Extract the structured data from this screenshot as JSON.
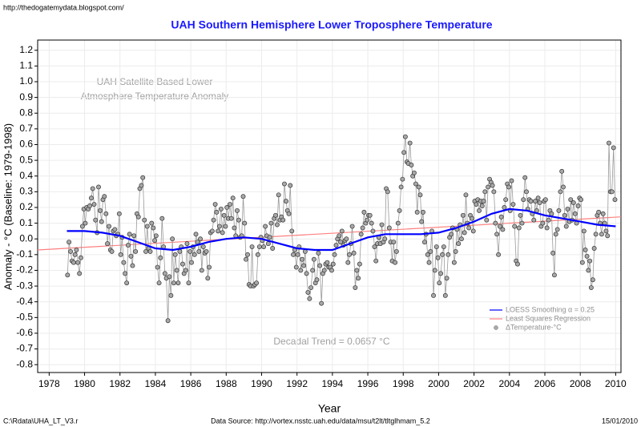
{
  "chart_data": {
    "type": "scatter",
    "source_url": "http://thedogatemydata.blogspot.com/",
    "title": "UAH Southern Hemisphere Lower Troposphere Temperature",
    "annotations": [
      "UAH Satellite Based Lower",
      "Atmosphere Temperature Anomaly",
      "Decadal Trend =  0.0657 °C"
    ],
    "xlabel": "Year",
    "ylabel": "Anomaly - °C (Baseline: 1979-1998)",
    "footer": [
      "C:\\Rdata\\UHA_LT_V3.r",
      "Data Source: http://vortex.nsstc.uah.edu/data/msu/t2lt/tltglhmam_5.2",
      "15/01/2010"
    ],
    "xlim": [
      1977.35,
      2010.3
    ],
    "ylim": [
      -0.85,
      1.265
    ],
    "xticks": [
      1978,
      1980,
      1982,
      1984,
      1986,
      1988,
      1990,
      1992,
      1994,
      1996,
      1998,
      2000,
      2002,
      2004,
      2006,
      2008,
      2010
    ],
    "yticks": [
      -0.8,
      -0.7,
      -0.6,
      -0.5,
      -0.4,
      -0.3,
      -0.2,
      -0.1,
      {
        "value": 0,
        "label": "0.0"
      },
      0.1,
      0.2,
      0.3,
      0.4,
      0.5,
      0.6,
      0.7,
      0.8,
      0.9,
      {
        "value": 1,
        "label": "1.0"
      },
      1.1,
      1.2
    ],
    "grid": true,
    "legend": "lower right",
    "series": [
      {
        "name": "LOESS Smoothing α = 0.25",
        "kind": "line",
        "color": "#0000ff",
        "x": [
          1979,
          1980,
          1981,
          1982,
          1983,
          1984,
          1985,
          1986,
          1987,
          1988,
          1989,
          1990,
          1991,
          1992,
          1993,
          1994,
          1995,
          1996,
          1997,
          1998,
          1999,
          2000,
          2001,
          2002,
          2003,
          2004,
          2005,
          2006,
          2007,
          2008,
          2009,
          2010
        ],
        "values": [
          0.05,
          0.05,
          0.04,
          0.02,
          -0.02,
          -0.06,
          -0.07,
          -0.05,
          -0.02,
          0.0,
          0.01,
          0.0,
          -0.03,
          -0.06,
          -0.07,
          -0.07,
          -0.03,
          0.01,
          0.03,
          0.03,
          0.03,
          0.04,
          0.07,
          0.11,
          0.16,
          0.19,
          0.18,
          0.15,
          0.13,
          0.11,
          0.09,
          0.08
        ]
      },
      {
        "name": "Least Squares Regression",
        "kind": "line",
        "color": "#ff7f7f",
        "x": [
          1977.35,
          2010.3
        ],
        "values": [
          -0.07,
          0.14
        ]
      },
      {
        "name": "ΔTemperature-°C",
        "kind": "points",
        "color": "#a8a8a8",
        "x": [
          1979.04,
          1979.12,
          1979.21,
          1979.29,
          1979.38,
          1979.46,
          1979.54,
          1979.62,
          1979.71,
          1979.79,
          1979.88,
          1979.96,
          1980.04,
          1980.12,
          1980.21,
          1980.29,
          1980.38,
          1980.46,
          1980.54,
          1980.62,
          1980.71,
          1980.79,
          1980.88,
          1980.96,
          1981.04,
          1981.12,
          1981.21,
          1981.29,
          1981.38,
          1981.46,
          1981.54,
          1981.62,
          1981.71,
          1981.79,
          1981.88,
          1981.96,
          1982.04,
          1982.12,
          1982.21,
          1982.29,
          1982.38,
          1982.46,
          1982.54,
          1982.62,
          1982.71,
          1982.79,
          1982.88,
          1982.96,
          1983.04,
          1983.12,
          1983.21,
          1983.29,
          1983.38,
          1983.46,
          1983.54,
          1983.62,
          1983.71,
          1983.79,
          1983.88,
          1983.96,
          1984.04,
          1984.12,
          1984.21,
          1984.29,
          1984.38,
          1984.46,
          1984.54,
          1984.62,
          1984.71,
          1984.79,
          1984.88,
          1984.96,
          1985.04,
          1985.12,
          1985.21,
          1985.29,
          1985.38,
          1985.46,
          1985.54,
          1985.62,
          1985.71,
          1985.79,
          1985.88,
          1985.96,
          1986.04,
          1986.12,
          1986.21,
          1986.29,
          1986.38,
          1986.46,
          1986.54,
          1986.62,
          1986.71,
          1986.79,
          1986.88,
          1986.96,
          1987.04,
          1987.12,
          1987.21,
          1987.29,
          1987.38,
          1987.46,
          1987.54,
          1987.62,
          1987.71,
          1987.79,
          1987.88,
          1987.96,
          1988.04,
          1988.12,
          1988.21,
          1988.29,
          1988.38,
          1988.46,
          1988.54,
          1988.62,
          1988.71,
          1988.79,
          1988.88,
          1988.96,
          1989.04,
          1989.12,
          1989.21,
          1989.29,
          1989.38,
          1989.46,
          1989.54,
          1989.62,
          1989.71,
          1989.79,
          1989.88,
          1989.96,
          1990.04,
          1990.12,
          1990.21,
          1990.29,
          1990.38,
          1990.46,
          1990.54,
          1990.62,
          1990.71,
          1990.79,
          1990.88,
          1990.96,
          1991.04,
          1991.12,
          1991.21,
          1991.29,
          1991.38,
          1991.46,
          1991.54,
          1991.62,
          1991.71,
          1991.79,
          1991.88,
          1991.96,
          1992.04,
          1992.12,
          1992.21,
          1992.29,
          1992.38,
          1992.46,
          1992.54,
          1992.62,
          1992.71,
          1992.79,
          1992.88,
          1992.96,
          1993.04,
          1993.12,
          1993.21,
          1993.29,
          1993.38,
          1993.46,
          1993.54,
          1993.62,
          1993.71,
          1993.79,
          1993.88,
          1993.96,
          1994.04,
          1994.12,
          1994.21,
          1994.29,
          1994.38,
          1994.46,
          1994.54,
          1994.62,
          1994.71,
          1994.79,
          1994.88,
          1994.96,
          1995.04,
          1995.12,
          1995.21,
          1995.29,
          1995.38,
          1995.46,
          1995.54,
          1995.62,
          1995.71,
          1995.79,
          1995.88,
          1995.96,
          1996.04,
          1996.12,
          1996.21,
          1996.29,
          1996.38,
          1996.46,
          1996.54,
          1996.62,
          1996.71,
          1996.79,
          1996.88,
          1996.96,
          1997.04,
          1997.12,
          1997.21,
          1997.29,
          1997.38,
          1997.46,
          1997.54,
          1997.62,
          1997.71,
          1997.79,
          1997.88,
          1997.96,
          1998.04,
          1998.12,
          1998.21,
          1998.29,
          1998.38,
          1998.46,
          1998.54,
          1998.62,
          1998.71,
          1998.79,
          1998.88,
          1998.96,
          1999.04,
          1999.12,
          1999.21,
          1999.29,
          1999.38,
          1999.46,
          1999.54,
          1999.62,
          1999.71,
          1999.79,
          1999.88,
          1999.96,
          2000.04,
          2000.12,
          2000.21,
          2000.29,
          2000.38,
          2000.46,
          2000.54,
          2000.62,
          2000.71,
          2000.79,
          2000.88,
          2000.96,
          2001.04,
          2001.12,
          2001.21,
          2001.29,
          2001.38,
          2001.46,
          2001.54,
          2001.62,
          2001.71,
          2001.79,
          2001.88,
          2001.96,
          2002.04,
          2002.12,
          2002.21,
          2002.29,
          2002.38,
          2002.46,
          2002.54,
          2002.62,
          2002.71,
          2002.79,
          2002.88,
          2002.96,
          2003.04,
          2003.12,
          2003.21,
          2003.29,
          2003.38,
          2003.46,
          2003.54,
          2003.62,
          2003.71,
          2003.79,
          2003.88,
          2003.96,
          2004.04,
          2004.12,
          2004.21,
          2004.29,
          2004.38,
          2004.46,
          2004.54,
          2004.62,
          2004.71,
          2004.79,
          2004.88,
          2004.96,
          2005.04,
          2005.12,
          2005.21,
          2005.29,
          2005.38,
          2005.46,
          2005.54,
          2005.62,
          2005.71,
          2005.79,
          2005.88,
          2005.96,
          2006.04,
          2006.12,
          2006.21,
          2006.29,
          2006.38,
          2006.46,
          2006.54,
          2006.62,
          2006.71,
          2006.79,
          2006.88,
          2006.96,
          2007.04,
          2007.12,
          2007.21,
          2007.29,
          2007.38,
          2007.46,
          2007.54,
          2007.62,
          2007.71,
          2007.79,
          2007.88,
          2007.96,
          2008.04,
          2008.12,
          2008.21,
          2008.29,
          2008.38,
          2008.46,
          2008.54,
          2008.62,
          2008.71,
          2008.79,
          2008.88,
          2008.96,
          2009.04,
          2009.12,
          2009.21,
          2009.29,
          2009.38,
          2009.46,
          2009.54,
          2009.62,
          2009.71,
          2009.79,
          2009.88,
          2009.96
        ],
        "values": [
          -0.23,
          -0.02,
          -0.08,
          -0.14,
          -0.15,
          -0.1,
          -0.07,
          -0.15,
          -0.22,
          -0.12,
          0.08,
          0.19,
          0.1,
          0.2,
          0.19,
          0.21,
          0.26,
          0.32,
          0.22,
          0.12,
          0.04,
          0.33,
          0.18,
          0.11,
          0.25,
          0.27,
          0.16,
          -0.03,
          0.08,
          -0.07,
          -0.08,
          0.05,
          0.06,
          0.02,
          0.03,
          0.16,
          -0.1,
          0.01,
          -0.15,
          -0.22,
          -0.28,
          -0.04,
          0.03,
          -0.11,
          -0.17,
          0.02,
          -0.08,
          0.16,
          0.14,
          0.32,
          0.34,
          0.39,
          0.12,
          -0.08,
          0.08,
          -0.06,
          -0.08,
          0.1,
          0.07,
          -0.01,
          0.02,
          -0.18,
          -0.28,
          -0.12,
          0.13,
          -0.05,
          -0.22,
          -0.25,
          -0.52,
          -0.24,
          -0.36,
          0.0,
          -0.28,
          -0.1,
          -0.2,
          -0.28,
          -0.08,
          -0.05,
          -0.16,
          -0.22,
          -0.2,
          -0.03,
          -0.28,
          -0.08,
          -0.15,
          -0.05,
          -0.1,
          0.03,
          -0.02,
          -0.08,
          0.0,
          -0.2,
          -0.05,
          -0.09,
          -0.08,
          -0.25,
          -0.18,
          0.04,
          0.05,
          0.12,
          0.22,
          0.17,
          0.05,
          0.08,
          0.19,
          0.04,
          0.15,
          0.08,
          0.2,
          0.13,
          0.22,
          0.13,
          0.26,
          0.07,
          0.02,
          0.18,
          0.12,
          0.01,
          0.02,
          0.27,
          0.1,
          -0.13,
          -0.1,
          -0.29,
          -0.3,
          -0.05,
          -0.3,
          -0.29,
          -0.28,
          -0.1,
          -0.05,
          0.01,
          -0.01,
          -0.05,
          0.08,
          0.02,
          -0.03,
          0.01,
          0.1,
          -0.06,
          0.13,
          0.15,
          0.09,
          0.28,
          0.12,
          0.14,
          0.12,
          0.35,
          0.24,
          0.18,
          0.16,
          0.34,
          0.05,
          -0.1,
          -0.07,
          -0.18,
          -0.1,
          -0.05,
          -0.2,
          -0.13,
          -0.17,
          -0.08,
          -0.22,
          -0.34,
          -0.38,
          -0.31,
          -0.2,
          -0.13,
          -0.28,
          -0.26,
          -0.09,
          -0.17,
          -0.41,
          -0.22,
          -0.2,
          -0.16,
          -0.15,
          -0.18,
          -0.18,
          -0.2,
          -0.16,
          -0.1,
          -0.04,
          0.0,
          0.02,
          -0.02,
          0.05,
          -0.04,
          -0.01,
          0.0,
          -0.15,
          -0.1,
          -0.03,
          0.08,
          -0.09,
          -0.31,
          -0.2,
          -0.25,
          -0.16,
          0.03,
          0.07,
          0.17,
          0.1,
          0.12,
          0.15,
          0.15,
          0.1,
          0.05,
          -0.05,
          -0.14,
          -0.03,
          0.01,
          -0.03,
          0.09,
          -0.02,
          0.0,
          0.32,
          0.3,
          0.07,
          -0.02,
          -0.14,
          -0.02,
          -0.15,
          -0.08,
          0.1,
          0.18,
          0.33,
          0.38,
          0.55,
          0.65,
          0.49,
          0.48,
          0.61,
          0.47,
          0.4,
          0.42,
          0.35,
          0.17,
          0.33,
          0.28,
          0.11,
          0.17,
          -0.02,
          0.03,
          -0.1,
          -0.15,
          -0.08,
          0.05,
          -0.36,
          -0.2,
          -0.05,
          -0.12,
          -0.28,
          -0.22,
          -0.1,
          -0.05,
          -0.36,
          -0.25,
          -0.1,
          0.01,
          0.03,
          0.07,
          -0.15,
          -0.08,
          0.06,
          -0.03,
          0.09,
          0.0,
          0.15,
          0.04,
          0.28,
          0.1,
          0.07,
          0.15,
          0.13,
          0.05,
          0.24,
          0.22,
          0.25,
          0.18,
          0.24,
          0.21,
          0.24,
          0.3,
          0.12,
          0.33,
          0.38,
          0.36,
          0.34,
          0.3,
          0.1,
          0.03,
          -0.1,
          0.08,
          0.14,
          0.06,
          0.2,
          0.25,
          0.35,
          0.33,
          0.18,
          0.37,
          0.22,
          0.08,
          -0.14,
          -0.16,
          0.07,
          0.15,
          0.1,
          0.25,
          0.39,
          0.3,
          0.19,
          0.25,
          0.24,
          0.16,
          0.12,
          0.24,
          0.18,
          0.26,
          0.23,
          0.08,
          0.1,
          0.24,
          0.25,
          0.07,
          0.12,
          0.18,
          0.16,
          -0.09,
          -0.23,
          0.03,
          0.06,
          0.18,
          0.3,
          0.43,
          0.33,
          0.15,
          0.08,
          0.19,
          0.11,
          0.25,
          0.12,
          0.23,
          0.16,
          0.1,
          0.21,
          0.26,
          0.25,
          -0.15,
          0.05,
          -0.07,
          -0.11,
          -0.2,
          -0.14,
          -0.31,
          -0.26,
          -0.06,
          0.03,
          0.15,
          0.17,
          0.1,
          0.03,
          0.16,
          0.1,
          0.05,
          0.02,
          0.61,
          0.3,
          0.3,
          0.58,
          0.25
        ]
      }
    ]
  }
}
